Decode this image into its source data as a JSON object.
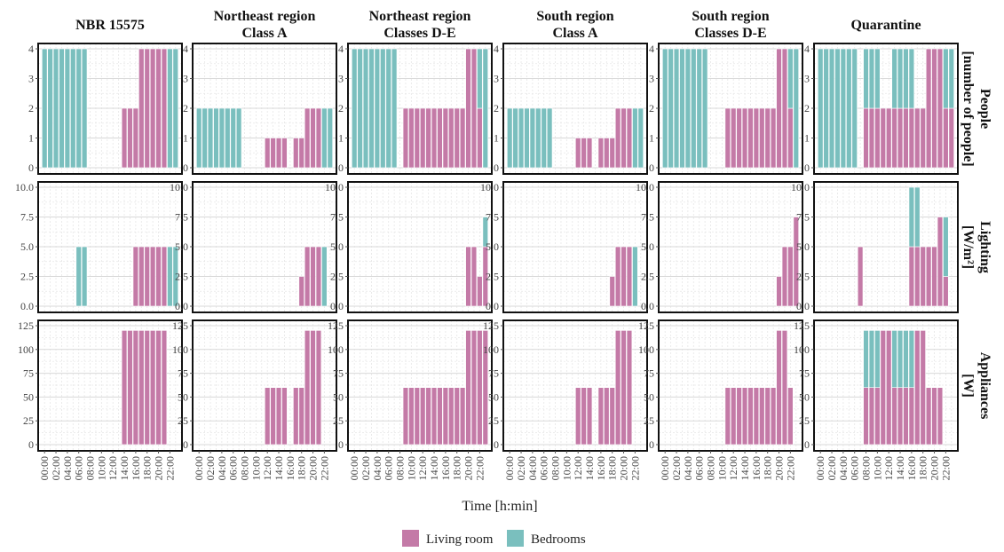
{
  "colors": {
    "living_room": "#c47aa7",
    "bedrooms": "#7abfbe",
    "panel_border": "#111111",
    "grid_major": "#d9d9d9",
    "grid_minor": "#e6e6e6"
  },
  "chart_data": {
    "type": "bar",
    "stacked": true,
    "facets": {
      "columns": [
        "NBR 15575",
        "Northeast region\nClass A",
        "Northeast region\nClasses D-E",
        "South region\nClass A",
        "South region\nClasses D-E",
        "Quarantine"
      ],
      "rows": [
        "People\n[number of people]",
        "Lighting\n[W/m²]",
        "Appliances\n[W]"
      ]
    },
    "xlabel": "Time [h:min]",
    "x_hours": [
      0,
      1,
      2,
      3,
      4,
      5,
      6,
      7,
      8,
      9,
      10,
      11,
      12,
      13,
      14,
      15,
      16,
      17,
      18,
      19,
      20,
      21,
      22,
      23
    ],
    "x_tick_labels": [
      "00:00",
      "02:00",
      "04:00",
      "06:00",
      "08:00",
      "10:00",
      "12:00",
      "14:00",
      "16:00",
      "18:00",
      "20:00",
      "22:00"
    ],
    "y_axes": [
      {
        "ylim": [
          0,
          4
        ],
        "ticks": [
          0,
          1,
          2,
          3,
          4
        ],
        "tick_labels": [
          "0",
          "1",
          "2",
          "3",
          "4"
        ]
      },
      {
        "ylim": [
          0,
          10
        ],
        "ticks": [
          0,
          2.5,
          5,
          7.5,
          10
        ],
        "tick_labels": [
          "0.0",
          "2.5",
          "5.0",
          "7.5",
          "10.0"
        ]
      },
      {
        "ylim": [
          0,
          125
        ],
        "ticks": [
          0,
          25,
          50,
          75,
          100,
          125
        ],
        "tick_labels": [
          "0",
          "25",
          "50",
          "75",
          "100",
          "125"
        ]
      }
    ],
    "legend": {
      "position": "bottom",
      "entries": [
        {
          "name": "Living room",
          "color_key": "living_room"
        },
        {
          "name": "Bedrooms",
          "color_key": "bedrooms"
        }
      ]
    },
    "series_order": [
      "living_room",
      "bedrooms"
    ],
    "panels": [
      [
        {
          "living_room": [
            0,
            0,
            0,
            0,
            0,
            0,
            0,
            0,
            0,
            0,
            0,
            0,
            0,
            0,
            2,
            2,
            2,
            4,
            4,
            4,
            4,
            4,
            0,
            0
          ],
          "bedrooms": [
            4,
            4,
            4,
            4,
            4,
            4,
            4,
            4,
            0,
            0,
            0,
            0,
            0,
            0,
            0,
            0,
            0,
            0,
            0,
            0,
            0,
            0,
            4,
            4
          ]
        },
        {
          "living_room": [
            0,
            0,
            0,
            0,
            0,
            0,
            0,
            0,
            0,
            0,
            0,
            0,
            0,
            0,
            0,
            0,
            5,
            5,
            5,
            5,
            5,
            5,
            0,
            0
          ],
          "bedrooms": [
            0,
            0,
            0,
            0,
            0,
            0,
            5,
            5,
            0,
            0,
            0,
            0,
            0,
            0,
            0,
            0,
            0,
            0,
            0,
            0,
            0,
            0,
            5,
            5
          ]
        },
        {
          "living_room": [
            0,
            0,
            0,
            0,
            0,
            0,
            0,
            0,
            0,
            0,
            0,
            0,
            0,
            0,
            120,
            120,
            120,
            120,
            120,
            120,
            120,
            120,
            0,
            0
          ],
          "bedrooms": [
            0,
            0,
            0,
            0,
            0,
            0,
            0,
            0,
            0,
            0,
            0,
            0,
            0,
            0,
            0,
            0,
            0,
            0,
            0,
            0,
            0,
            0,
            0,
            0
          ]
        }
      ],
      [
        {
          "living_room": [
            0,
            0,
            0,
            0,
            0,
            0,
            0,
            0,
            0,
            0,
            0,
            0,
            1,
            1,
            1,
            1,
            0,
            1,
            1,
            2,
            2,
            2,
            0,
            0
          ],
          "bedrooms": [
            2,
            2,
            2,
            2,
            2,
            2,
            2,
            2,
            0,
            0,
            0,
            0,
            0,
            0,
            0,
            0,
            0,
            0,
            0,
            0,
            0,
            0,
            2,
            2
          ]
        },
        {
          "living_room": [
            0,
            0,
            0,
            0,
            0,
            0,
            0,
            0,
            0,
            0,
            0,
            0,
            0,
            0,
            0,
            0,
            0,
            0,
            2.5,
            5,
            5,
            5,
            0,
            0
          ],
          "bedrooms": [
            0,
            0,
            0,
            0,
            0,
            0,
            0,
            0,
            0,
            0,
            0,
            0,
            0,
            0,
            0,
            0,
            0,
            0,
            0,
            0,
            0,
            0,
            5,
            0
          ]
        },
        {
          "living_room": [
            0,
            0,
            0,
            0,
            0,
            0,
            0,
            0,
            0,
            0,
            0,
            0,
            60,
            60,
            60,
            60,
            0,
            60,
            60,
            120,
            120,
            120,
            0,
            0
          ],
          "bedrooms": [
            0,
            0,
            0,
            0,
            0,
            0,
            0,
            0,
            0,
            0,
            0,
            0,
            0,
            0,
            0,
            0,
            0,
            0,
            0,
            0,
            0,
            0,
            0,
            0
          ]
        }
      ],
      [
        {
          "living_room": [
            0,
            0,
            0,
            0,
            0,
            0,
            0,
            0,
            0,
            2,
            2,
            2,
            2,
            2,
            2,
            2,
            2,
            2,
            2,
            2,
            4,
            4,
            2,
            0
          ],
          "bedrooms": [
            4,
            4,
            4,
            4,
            4,
            4,
            4,
            4,
            0,
            0,
            0,
            0,
            0,
            0,
            0,
            0,
            0,
            0,
            0,
            0,
            0,
            0,
            2,
            4
          ]
        },
        {
          "living_room": [
            0,
            0,
            0,
            0,
            0,
            0,
            0,
            0,
            0,
            0,
            0,
            0,
            0,
            0,
            0,
            0,
            0,
            0,
            0,
            0,
            5,
            5,
            2.5,
            5
          ],
          "bedrooms": [
            0,
            0,
            0,
            0,
            0,
            0,
            0,
            0,
            0,
            0,
            0,
            0,
            0,
            0,
            0,
            0,
            0,
            0,
            0,
            0,
            0,
            0,
            0,
            2.5
          ]
        },
        {
          "living_room": [
            0,
            0,
            0,
            0,
            0,
            0,
            0,
            0,
            0,
            60,
            60,
            60,
            60,
            60,
            60,
            60,
            60,
            60,
            60,
            60,
            120,
            120,
            120,
            120
          ],
          "bedrooms": [
            0,
            0,
            0,
            0,
            0,
            0,
            0,
            0,
            0,
            0,
            0,
            0,
            0,
            0,
            0,
            0,
            0,
            0,
            0,
            0,
            0,
            0,
            0,
            0
          ]
        }
      ],
      [
        {
          "living_room": [
            0,
            0,
            0,
            0,
            0,
            0,
            0,
            0,
            0,
            0,
            0,
            0,
            1,
            1,
            1,
            0,
            1,
            1,
            1,
            2,
            2,
            2,
            0,
            0
          ],
          "bedrooms": [
            2,
            2,
            2,
            2,
            2,
            2,
            2,
            2,
            0,
            0,
            0,
            0,
            0,
            0,
            0,
            0,
            0,
            0,
            0,
            0,
            0,
            0,
            2,
            2
          ]
        },
        {
          "living_room": [
            0,
            0,
            0,
            0,
            0,
            0,
            0,
            0,
            0,
            0,
            0,
            0,
            0,
            0,
            0,
            0,
            0,
            0,
            2.5,
            5,
            5,
            5,
            0,
            0
          ],
          "bedrooms": [
            0,
            0,
            0,
            0,
            0,
            0,
            0,
            0,
            0,
            0,
            0,
            0,
            0,
            0,
            0,
            0,
            0,
            0,
            0,
            0,
            0,
            0,
            5,
            0
          ]
        },
        {
          "living_room": [
            0,
            0,
            0,
            0,
            0,
            0,
            0,
            0,
            0,
            0,
            0,
            0,
            60,
            60,
            60,
            0,
            60,
            60,
            60,
            120,
            120,
            120,
            0,
            0
          ],
          "bedrooms": [
            0,
            0,
            0,
            0,
            0,
            0,
            0,
            0,
            0,
            0,
            0,
            0,
            0,
            0,
            0,
            0,
            0,
            0,
            0,
            0,
            0,
            0,
            0,
            0
          ]
        }
      ],
      [
        {
          "living_room": [
            0,
            0,
            0,
            0,
            0,
            0,
            0,
            0,
            0,
            0,
            0,
            2,
            2,
            2,
            2,
            2,
            2,
            2,
            2,
            2,
            4,
            4,
            2,
            0
          ],
          "bedrooms": [
            4,
            4,
            4,
            4,
            4,
            4,
            4,
            4,
            0,
            0,
            0,
            0,
            0,
            0,
            0,
            0,
            0,
            0,
            0,
            0,
            0,
            0,
            2,
            4
          ]
        },
        {
          "living_room": [
            0,
            0,
            0,
            0,
            0,
            0,
            0,
            0,
            0,
            0,
            0,
            0,
            0,
            0,
            0,
            0,
            0,
            0,
            0,
            0,
            2.5,
            5,
            5,
            7.5
          ],
          "bedrooms": [
            0,
            0,
            0,
            0,
            0,
            0,
            0,
            0,
            0,
            0,
            0,
            0,
            0,
            0,
            0,
            0,
            0,
            0,
            0,
            0,
            0,
            0,
            0,
            0
          ]
        },
        {
          "living_room": [
            0,
            0,
            0,
            0,
            0,
            0,
            0,
            0,
            0,
            0,
            0,
            60,
            60,
            60,
            60,
            60,
            60,
            60,
            60,
            60,
            120,
            120,
            60,
            0
          ],
          "bedrooms": [
            0,
            0,
            0,
            0,
            0,
            0,
            0,
            0,
            0,
            0,
            0,
            0,
            0,
            0,
            0,
            0,
            0,
            0,
            0,
            0,
            0,
            0,
            0,
            0
          ]
        }
      ],
      [
        {
          "living_room": [
            0,
            0,
            0,
            0,
            0,
            0,
            0,
            0,
            2,
            2,
            2,
            2,
            2,
            2,
            2,
            2,
            2,
            2,
            2,
            4,
            4,
            4,
            2,
            2
          ],
          "bedrooms": [
            4,
            4,
            4,
            4,
            4,
            4,
            4,
            0,
            2,
            2,
            2,
            0,
            0,
            2,
            2,
            2,
            2,
            0,
            0,
            0,
            0,
            0,
            2,
            2
          ]
        },
        {
          "living_room": [
            0,
            0,
            0,
            0,
            0,
            0,
            0,
            5,
            0,
            0,
            0,
            0,
            0,
            0,
            0,
            0,
            5,
            5,
            5,
            5,
            5,
            7.5,
            2.5,
            0
          ],
          "bedrooms": [
            0,
            0,
            0,
            0,
            0,
            0,
            0,
            0,
            0,
            0,
            0,
            0,
            0,
            0,
            0,
            0,
            5,
            5,
            0,
            0,
            0,
            0,
            5,
            0
          ]
        },
        {
          "living_room": [
            0,
            0,
            0,
            0,
            0,
            0,
            0,
            0,
            60,
            60,
            60,
            120,
            120,
            60,
            60,
            60,
            60,
            120,
            120,
            60,
            60,
            60,
            0,
            0
          ],
          "bedrooms": [
            0,
            0,
            0,
            0,
            0,
            0,
            0,
            0,
            60,
            60,
            60,
            0,
            0,
            60,
            60,
            60,
            60,
            0,
            0,
            0,
            0,
            0,
            0,
            0
          ]
        }
      ]
    ]
  }
}
